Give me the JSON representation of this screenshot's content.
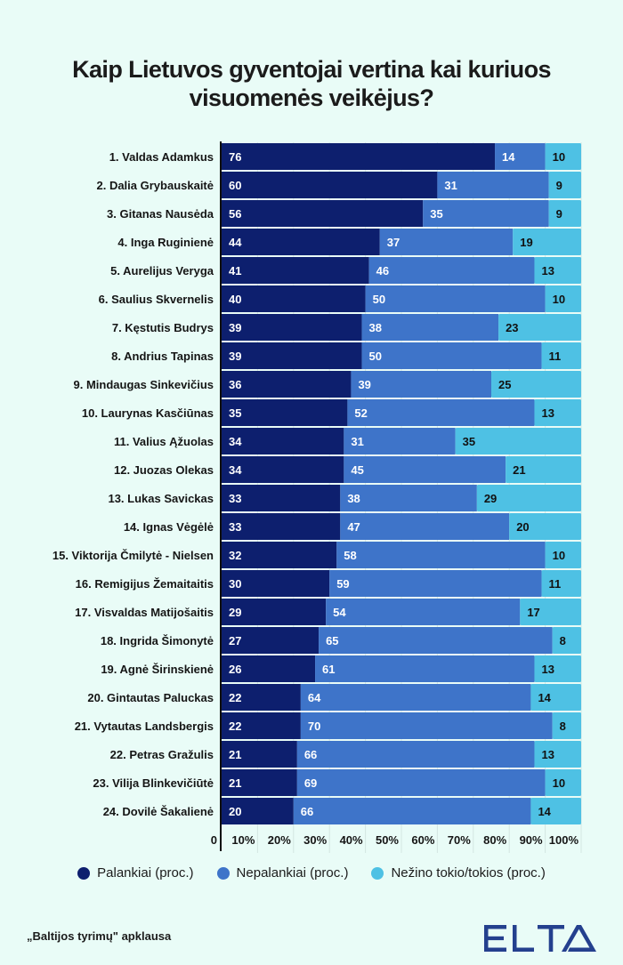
{
  "title_lines": [
    "Kaip Lietuvos gyventojai vertina kai kuriuos",
    "visuomenės veikėjus?"
  ],
  "colors": {
    "background": "#e9fcf7",
    "palankiai": "#0d1f6e",
    "nepalankiai": "#3e74c9",
    "nezino": "#4ec1e4",
    "logo": "#24408e"
  },
  "chart_data": {
    "type": "bar",
    "orientation": "horizontal",
    "stacked": true,
    "title": "Kaip Lietuvos gyventojai vertina kai kuriuos visuomenės veikėjus?",
    "xlabel": "",
    "ylabel": "",
    "xlim": [
      0,
      100
    ],
    "x_ticks": [
      "0",
      "10%",
      "20%",
      "30%",
      "40%",
      "50%",
      "60%",
      "70%",
      "80%",
      "90%",
      "100%"
    ],
    "grid": true,
    "legend_position": "bottom",
    "categories": [
      "1. Valdas Adamkus",
      "2. Dalia Grybauskaitė",
      "3. Gitanas Nausėda",
      "4. Inga Ruginienė",
      "5. Aurelijus Veryga",
      "6. Saulius Skvernelis",
      "7. Kęstutis Budrys",
      "8. Andrius Tapinas",
      "9. Mindaugas Sinkevičius",
      "10. Laurynas Kasčiūnas",
      "11. Valius Ąžuolas",
      "12. Juozas Olekas",
      "13. Lukas Savickas",
      "14. Ignas Vėgėlė",
      "15. Viktorija Čmilytė - Nielsen",
      "16. Remigijus Žemaitaitis",
      "17. Visvaldas Matijošaitis",
      "18. Ingrida Šimonytė",
      "19. Agnė Širinskienė",
      "20. Gintautas Paluckas",
      "21. Vytautas Landsbergis",
      "22. Petras Gražulis",
      "23. Vilija Blinkevičiūtė",
      "24. Dovilė Šakalienė"
    ],
    "series": [
      {
        "name": "Palankiai (proc.)",
        "values": [
          76,
          60,
          56,
          44,
          41,
          40,
          39,
          39,
          36,
          35,
          34,
          34,
          33,
          33,
          32,
          30,
          29,
          27,
          26,
          22,
          22,
          21,
          21,
          20
        ]
      },
      {
        "name": "Nepalankiai (proc.)",
        "values": [
          14,
          31,
          35,
          37,
          46,
          50,
          38,
          50,
          39,
          52,
          31,
          45,
          38,
          47,
          58,
          59,
          54,
          65,
          61,
          64,
          70,
          66,
          69,
          66
        ]
      },
      {
        "name": "Nežino tokio/tokios (proc.)",
        "values": [
          10,
          9,
          9,
          19,
          13,
          10,
          23,
          11,
          25,
          13,
          35,
          21,
          29,
          20,
          10,
          11,
          17,
          8,
          13,
          14,
          8,
          13,
          10,
          14
        ]
      }
    ]
  },
  "footer": {
    "source": "„Baltijos tyrimų\" apklausa",
    "logo_text": "ELTA"
  }
}
